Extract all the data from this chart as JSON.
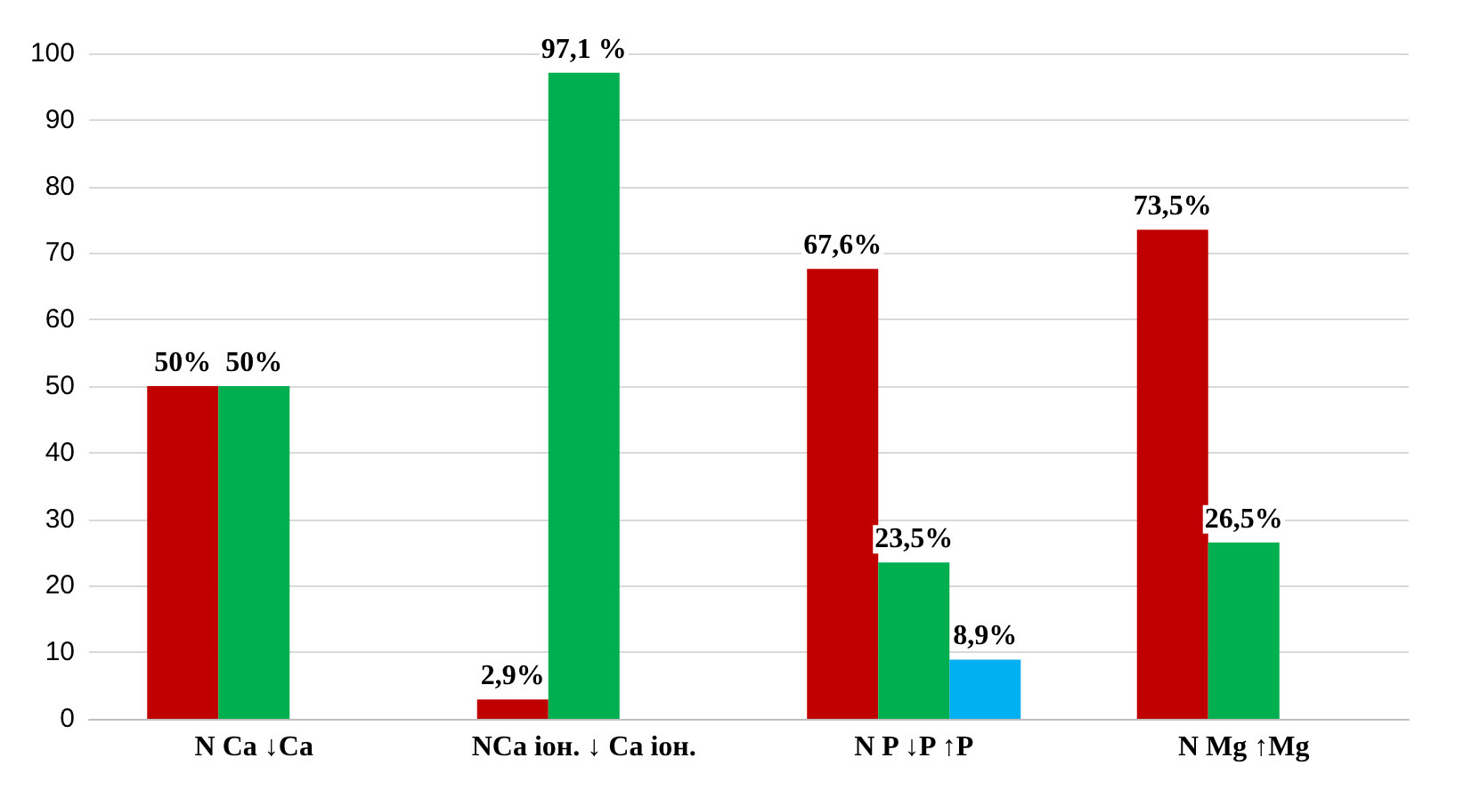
{
  "chart_data": {
    "type": "bar",
    "categories": [
      "N Ca ↓Ca",
      "NCa іон. ↓ Ca іон.",
      "N P ↓P ↑P",
      "N Mg ↑Mg"
    ],
    "series": [
      {
        "color": "#c00000",
        "values": [
          50,
          2.9,
          67.6,
          73.5
        ],
        "value_labels": [
          "50%",
          "2,9%",
          "67,6%",
          "73,5%"
        ]
      },
      {
        "color": "#00b050",
        "values": [
          50,
          97.1,
          23.5,
          26.5
        ],
        "value_labels": [
          "50%",
          "97,1 %",
          "23,5%",
          "26,5%"
        ]
      },
      {
        "color": "#00b0f0",
        "values": [
          null,
          null,
          8.9,
          null
        ],
        "value_labels": [
          null,
          null,
          "8,9%",
          null
        ]
      }
    ],
    "ylim": [
      0,
      100
    ],
    "yticks": [
      0,
      10,
      20,
      30,
      40,
      50,
      60,
      70,
      80,
      90,
      100
    ],
    "grid": "y"
  }
}
